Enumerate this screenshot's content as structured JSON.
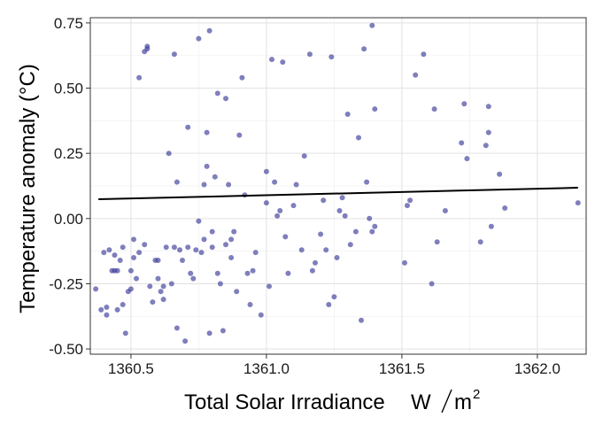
{
  "chart_data": {
    "type": "scatter",
    "title": "",
    "xlabel": "Total Solar Irradiance",
    "xlabel_unit_num": "W",
    "xlabel_unit_den": "m",
    "xlabel_unit_exp": "2",
    "ylabel": "Temperature anomaly (°C)",
    "xlim": [
      1360.35,
      1362.18
    ],
    "ylim": [
      -0.52,
      0.77
    ],
    "x_ticks": [
      1360.5,
      1361.0,
      1361.5,
      1362.0
    ],
    "x_tick_labels": [
      "1360.5",
      "1361.0",
      "1361.5",
      "1362.0"
    ],
    "y_ticks": [
      -0.5,
      -0.25,
      0.0,
      0.25,
      0.5,
      0.75
    ],
    "y_tick_labels": [
      "-0.50",
      "-0.25",
      "0.00",
      "0.25",
      "0.50",
      "0.75"
    ],
    "grid": true,
    "point_color": "#3a3a9a",
    "trend_color": "#000000",
    "trend_line": {
      "x": [
        1360.38,
        1362.15
      ],
      "y": [
        0.074,
        0.118
      ]
    },
    "points": [
      [
        1360.37,
        -0.27
      ],
      [
        1360.39,
        -0.35
      ],
      [
        1360.4,
        -0.13
      ],
      [
        1360.41,
        -0.37
      ],
      [
        1360.41,
        -0.34
      ],
      [
        1360.42,
        -0.12
      ],
      [
        1360.43,
        -0.2
      ],
      [
        1360.44,
        -0.14
      ],
      [
        1360.44,
        -0.2
      ],
      [
        1360.45,
        -0.35
      ],
      [
        1360.45,
        -0.2
      ],
      [
        1360.46,
        -0.16
      ],
      [
        1360.47,
        -0.11
      ],
      [
        1360.47,
        -0.33
      ],
      [
        1360.48,
        -0.44
      ],
      [
        1360.49,
        -0.28
      ],
      [
        1360.5,
        -0.2
      ],
      [
        1360.5,
        -0.27
      ],
      [
        1360.51,
        -0.15
      ],
      [
        1360.51,
        -0.08
      ],
      [
        1360.52,
        -0.23
      ],
      [
        1360.53,
        -0.13
      ],
      [
        1360.53,
        0.54
      ],
      [
        1360.55,
        -0.1
      ],
      [
        1360.55,
        0.64
      ],
      [
        1360.56,
        0.65
      ],
      [
        1360.56,
        0.66
      ],
      [
        1360.57,
        -0.26
      ],
      [
        1360.58,
        -0.32
      ],
      [
        1360.59,
        -0.16
      ],
      [
        1360.6,
        -0.16
      ],
      [
        1360.6,
        -0.23
      ],
      [
        1360.61,
        -0.28
      ],
      [
        1360.62,
        -0.31
      ],
      [
        1360.62,
        -0.26
      ],
      [
        1360.63,
        -0.11
      ],
      [
        1360.64,
        0.25
      ],
      [
        1360.65,
        -0.25
      ],
      [
        1360.66,
        -0.11
      ],
      [
        1360.66,
        0.63
      ],
      [
        1360.67,
        -0.42
      ],
      [
        1360.67,
        0.14
      ],
      [
        1360.68,
        -0.12
      ],
      [
        1360.69,
        -0.16
      ],
      [
        1360.7,
        -0.47
      ],
      [
        1360.71,
        -0.11
      ],
      [
        1360.71,
        0.35
      ],
      [
        1360.72,
        -0.21
      ],
      [
        1360.73,
        -0.23
      ],
      [
        1360.74,
        -0.12
      ],
      [
        1360.75,
        0.69
      ],
      [
        1360.75,
        -0.01
      ],
      [
        1360.76,
        -0.13
      ],
      [
        1360.77,
        0.13
      ],
      [
        1360.77,
        -0.08
      ],
      [
        1360.78,
        0.2
      ],
      [
        1360.78,
        0.33
      ],
      [
        1360.79,
        0.72
      ],
      [
        1360.79,
        -0.44
      ],
      [
        1360.8,
        -0.05
      ],
      [
        1360.8,
        -0.11
      ],
      [
        1360.81,
        0.16
      ],
      [
        1360.82,
        -0.21
      ],
      [
        1360.82,
        0.48
      ],
      [
        1360.83,
        -0.25
      ],
      [
        1360.84,
        -0.43
      ],
      [
        1360.85,
        0.46
      ],
      [
        1360.85,
        -0.1
      ],
      [
        1360.86,
        0.13
      ],
      [
        1360.87,
        -0.15
      ],
      [
        1360.87,
        -0.08
      ],
      [
        1360.88,
        -0.05
      ],
      [
        1360.89,
        -0.28
      ],
      [
        1360.9,
        0.32
      ],
      [
        1360.91,
        0.54
      ],
      [
        1360.92,
        0.09
      ],
      [
        1360.93,
        -0.21
      ],
      [
        1360.94,
        -0.33
      ],
      [
        1360.95,
        -0.2
      ],
      [
        1360.96,
        -0.13
      ],
      [
        1360.98,
        -0.37
      ],
      [
        1361.0,
        0.18
      ],
      [
        1361.0,
        0.06
      ],
      [
        1361.01,
        -0.26
      ],
      [
        1361.02,
        0.61
      ],
      [
        1361.03,
        0.14
      ],
      [
        1361.04,
        0.01
      ],
      [
        1361.05,
        0.03
      ],
      [
        1361.06,
        0.6
      ],
      [
        1361.07,
        -0.07
      ],
      [
        1361.08,
        -0.21
      ],
      [
        1361.1,
        0.05
      ],
      [
        1361.11,
        0.13
      ],
      [
        1361.13,
        -0.12
      ],
      [
        1361.14,
        0.24
      ],
      [
        1361.16,
        0.63
      ],
      [
        1361.17,
        -0.2
      ],
      [
        1361.18,
        -0.17
      ],
      [
        1361.2,
        -0.06
      ],
      [
        1361.21,
        0.07
      ],
      [
        1361.22,
        -0.12
      ],
      [
        1361.23,
        -0.33
      ],
      [
        1361.24,
        0.62
      ],
      [
        1361.25,
        -0.3
      ],
      [
        1361.26,
        -0.15
      ],
      [
        1361.27,
        0.03
      ],
      [
        1361.28,
        0.08
      ],
      [
        1361.29,
        0.01
      ],
      [
        1361.3,
        0.4
      ],
      [
        1361.31,
        -0.1
      ],
      [
        1361.33,
        -0.05
      ],
      [
        1361.34,
        0.31
      ],
      [
        1361.35,
        -0.39
      ],
      [
        1361.36,
        0.65
      ],
      [
        1361.37,
        0.14
      ],
      [
        1361.38,
        0.0
      ],
      [
        1361.39,
        0.74
      ],
      [
        1361.39,
        -0.05
      ],
      [
        1361.4,
        0.42
      ],
      [
        1361.4,
        -0.03
      ],
      [
        1361.51,
        -0.17
      ],
      [
        1361.52,
        0.05
      ],
      [
        1361.53,
        0.07
      ],
      [
        1361.55,
        0.55
      ],
      [
        1361.58,
        0.63
      ],
      [
        1361.61,
        -0.25
      ],
      [
        1361.62,
        0.42
      ],
      [
        1361.63,
        -0.09
      ],
      [
        1361.66,
        0.03
      ],
      [
        1361.72,
        0.29
      ],
      [
        1361.73,
        0.44
      ],
      [
        1361.74,
        0.23
      ],
      [
        1361.79,
        -0.09
      ],
      [
        1361.81,
        0.28
      ],
      [
        1361.82,
        0.33
      ],
      [
        1361.82,
        0.43
      ],
      [
        1361.83,
        -0.03
      ],
      [
        1361.86,
        0.17
      ],
      [
        1361.88,
        0.04
      ],
      [
        1362.15,
        0.06
      ]
    ]
  }
}
